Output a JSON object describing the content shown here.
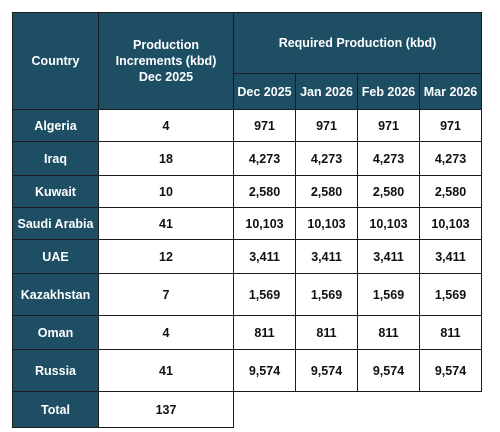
{
  "table": {
    "headers": {
      "country": "Country",
      "increments_line1": "Production",
      "increments_line2": "Increments (kbd)",
      "increments_line3": "Dec 2025",
      "required": "Required Production (kbd)",
      "months": [
        "Dec 2025",
        "Jan 2026",
        "Feb 2026",
        "Mar 2026"
      ]
    },
    "rows": [
      {
        "country": "Algeria",
        "increment": "4",
        "values": [
          "971",
          "971",
          "971",
          "971"
        ]
      },
      {
        "country": "Iraq",
        "increment": "18",
        "values": [
          "4,273",
          "4,273",
          "4,273",
          "4,273"
        ]
      },
      {
        "country": "Kuwait",
        "increment": "10",
        "values": [
          "2,580",
          "2,580",
          "2,580",
          "2,580"
        ]
      },
      {
        "country": "Saudi Arabia",
        "increment": "41",
        "values": [
          "10,103",
          "10,103",
          "10,103",
          "10,103"
        ]
      },
      {
        "country": "UAE",
        "increment": "12",
        "values": [
          "3,411",
          "3,411",
          "3,411",
          "3,411"
        ]
      },
      {
        "country": "Kazakhstan",
        "increment": "7",
        "values": [
          "1,569",
          "1,569",
          "1,569",
          "1,569"
        ]
      },
      {
        "country": "Oman",
        "increment": "4",
        "values": [
          "811",
          "811",
          "811",
          "811"
        ]
      },
      {
        "country": "Russia",
        "increment": "41",
        "values": [
          "9,574",
          "9,574",
          "9,574",
          "9,574"
        ]
      }
    ],
    "total": {
      "label": "Total",
      "increment": "137"
    }
  },
  "colors": {
    "header_bg": "#1d4e64",
    "header_text": "#ffffff",
    "cell_bg": "#ffffff",
    "border": "#1b1b1b"
  }
}
